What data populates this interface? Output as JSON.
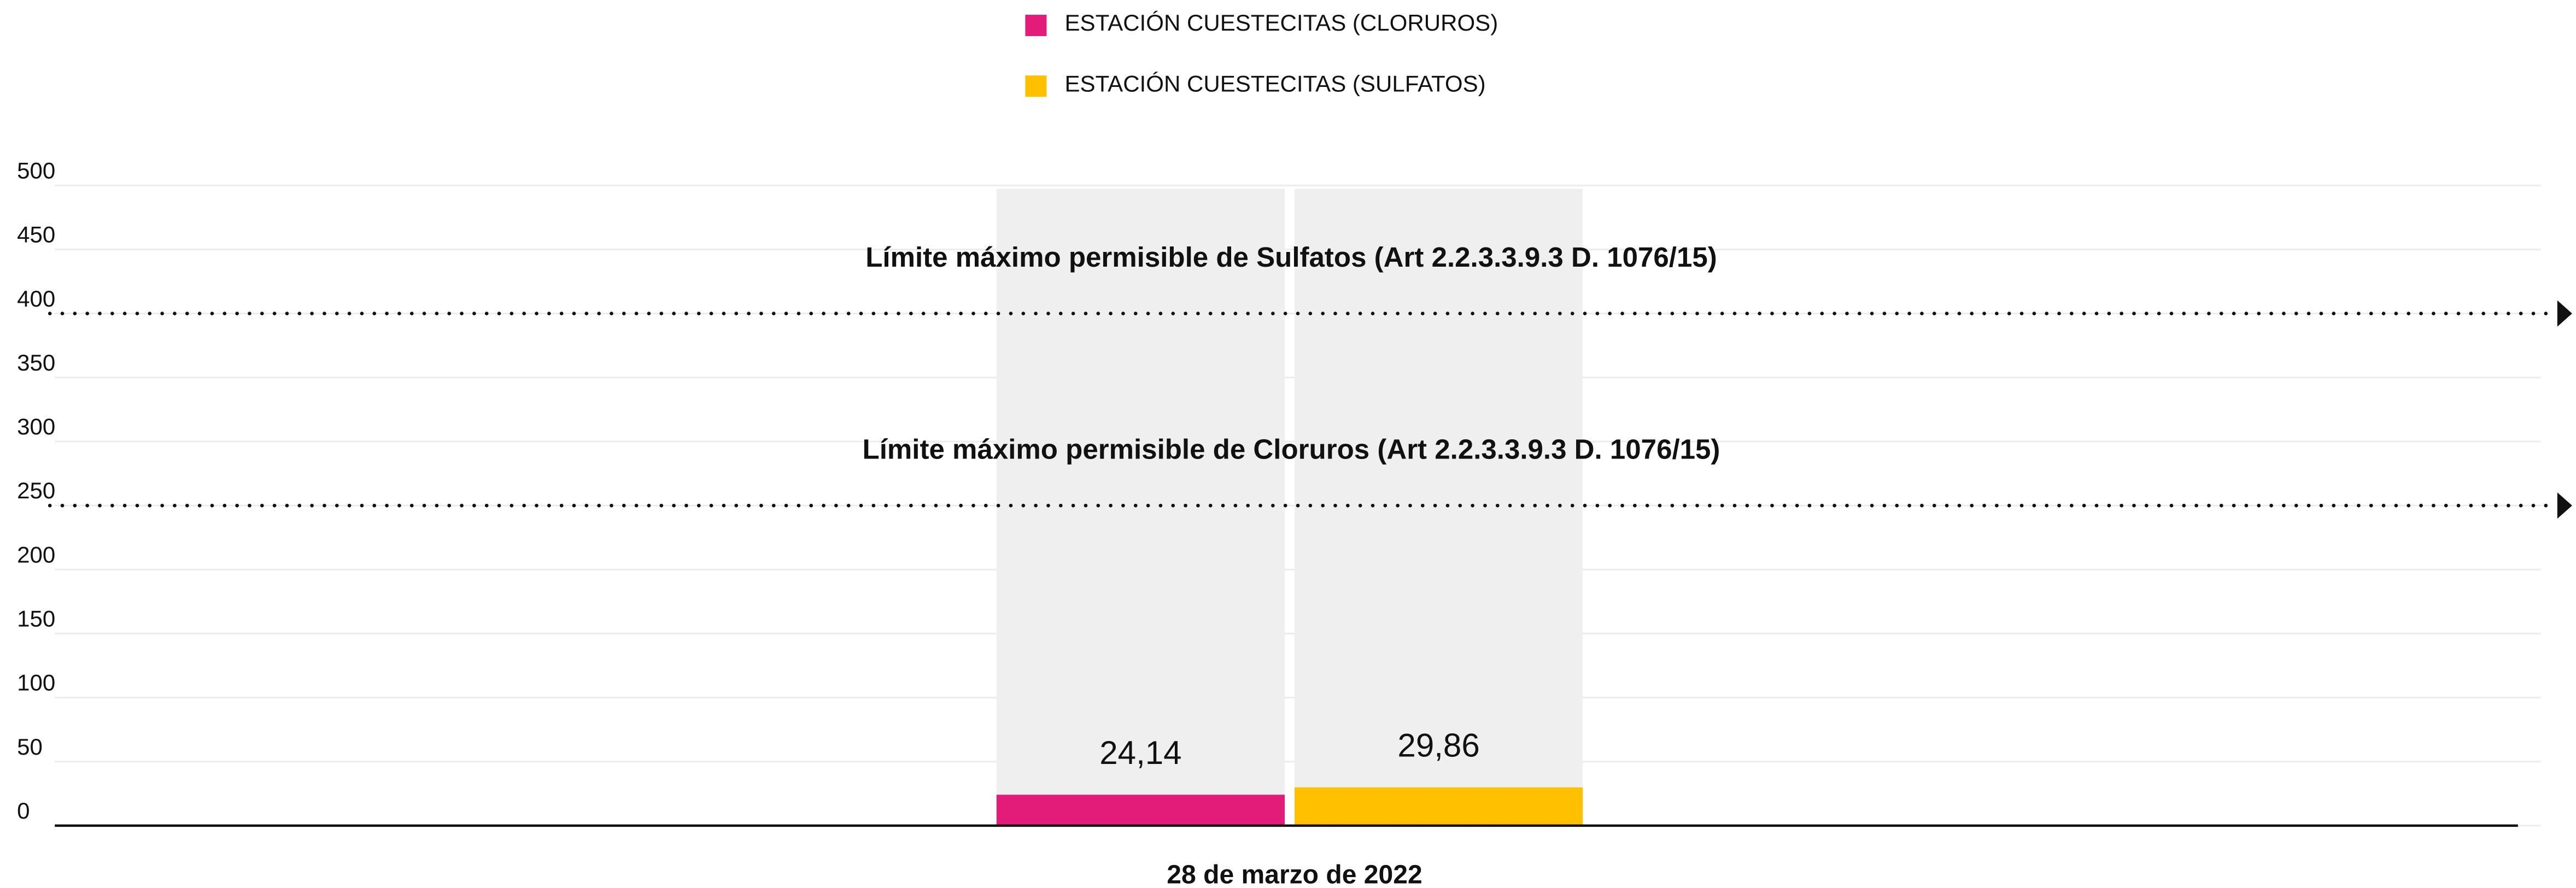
{
  "chart_data": {
    "type": "bar",
    "categories": [
      "28 de marzo de 2022"
    ],
    "series": [
      {
        "name": "ESTACIÓN CUESTECITAS (CLORUROS)",
        "color": "#e31c79",
        "values": [
          24.14
        ],
        "value_labels": [
          "24,14"
        ]
      },
      {
        "name": "ESTACIÓN CUESTECITAS (SULFATOS)",
        "color": "#ffc000",
        "values": [
          29.86
        ],
        "value_labels": [
          "29,86"
        ]
      }
    ],
    "ylim": [
      0,
      500
    ],
    "yticks": [
      0,
      50,
      100,
      150,
      200,
      250,
      300,
      350,
      400,
      450,
      500
    ],
    "grid": true,
    "legend": "top",
    "reference_lines": [
      {
        "value": 400,
        "label": "Límite máximo permisible de Sulfatos (Art 2.2.3.3.9.3 D. 1076/15)"
      },
      {
        "value": 250,
        "label": "Límite máximo permisible de Cloruros (Art 2.2.3.3.9.3 D. 1076/15)"
      }
    ]
  }
}
